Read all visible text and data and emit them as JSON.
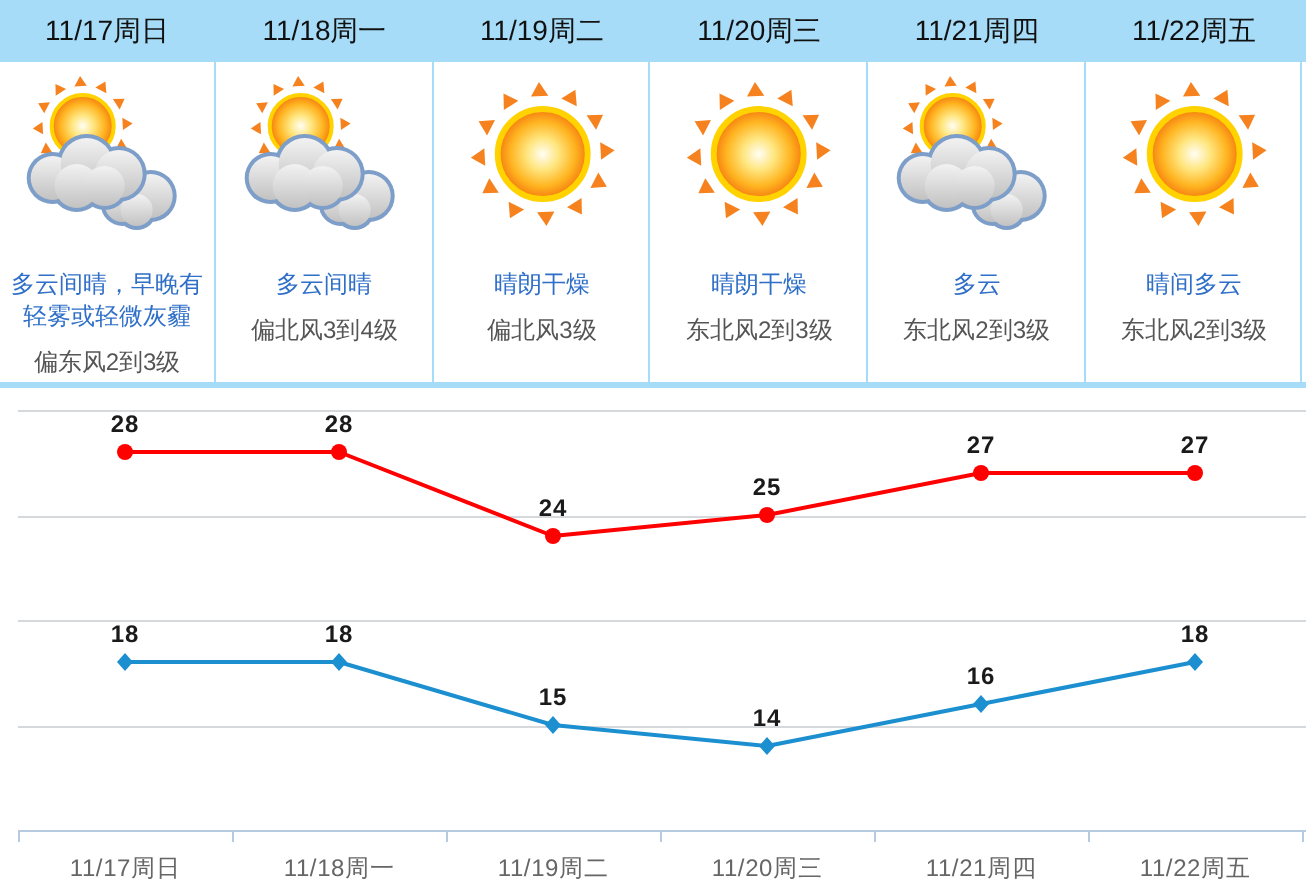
{
  "chart_data": [
    {
      "type": "other",
      "categories": [
        "11/17周日",
        "11/18周一",
        "11/19周二",
        "11/20周三",
        "11/21周四",
        "11/22周五"
      ],
      "annotations": [
        "多云间晴，早晚有轻雾或轻微灰霾",
        "多云间晴",
        "晴朗干燥",
        "晴朗干燥",
        "多云",
        "晴间多云",
        "偏东风2到3级",
        "偏北风3到4级",
        "偏北风3级",
        "东北风2到3级",
        "东北风2到3级",
        "东北风2到3级"
      ]
    },
    {
      "type": "line",
      "categories": [
        "11/17周日",
        "11/18周一",
        "11/19周二",
        "11/20周三",
        "11/21周四",
        "11/22周五"
      ],
      "series": [
        {
          "color": "#ff0000",
          "marker": "circle",
          "values": [
            28,
            28,
            24,
            25,
            27,
            27
          ]
        },
        {
          "color": "#1b8fcf",
          "marker": "diamond",
          "values": [
            18,
            18,
            15,
            14,
            16,
            18
          ]
        }
      ],
      "ylim": [
        10,
        30
      ],
      "yticks": [
        {
          "value": 15,
          "label": null
        },
        {
          "value": 20,
          "label": null
        },
        {
          "value": 25,
          "label": null
        },
        {
          "value": 30,
          "label": null
        }
      ],
      "grid": "y",
      "data_labels": true,
      "tick_labels": "x"
    }
  ]
}
